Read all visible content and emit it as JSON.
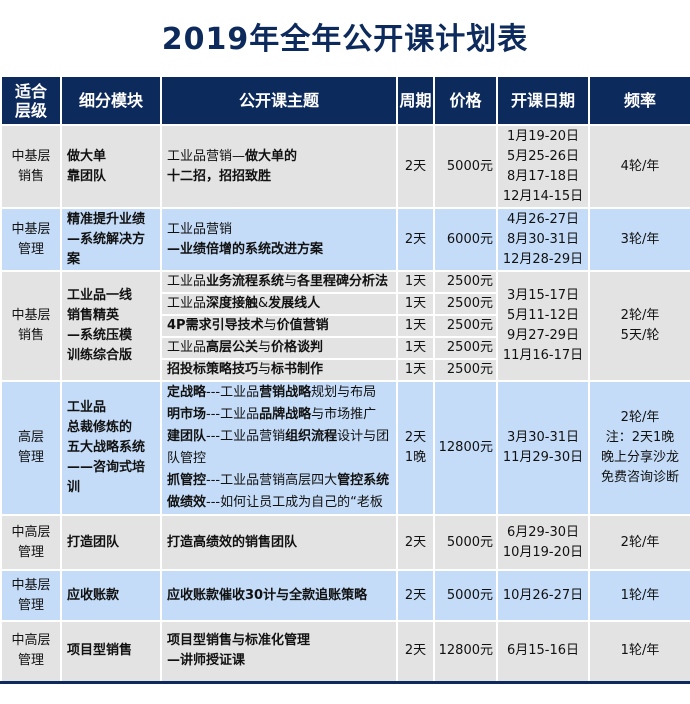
{
  "title": "2019年全年公开课计划表",
  "headers": [
    "适合\n层级",
    "细分模块",
    "公开课主题",
    "周期",
    "价格",
    "开课日期",
    "频率"
  ],
  "rows": [
    {
      "style": "g",
      "level": [
        "中基层",
        "销售"
      ],
      "module": [
        "做大单",
        "靠团队"
      ],
      "topics": [
        [
          {
            "t": "工业品营销—",
            "b": false
          },
          {
            "t": "做大单的",
            "b": true
          }
        ],
        [
          {
            "t": "十二招，招招致胜",
            "b": true
          }
        ]
      ],
      "period": "2天",
      "price": "5000元",
      "dates": [
        "1月19-20日",
        "5月25-26日",
        "8月17-18日",
        "12月14-15日"
      ],
      "freq": [
        "4轮/年"
      ]
    },
    {
      "style": "b",
      "level": [
        "中基层",
        "管理"
      ],
      "module": [
        "精准提升业绩",
        "—系统解决方案"
      ],
      "topics": [
        [
          {
            "t": "工业品营销",
            "b": false
          }
        ],
        [
          {
            "t": "—业绩倍增的系统改进方案",
            "b": true
          }
        ]
      ],
      "period": "2天",
      "price": "6000元",
      "dates": [
        "4月26-27日",
        "8月30-31日",
        "12月28-29日"
      ],
      "freq": [
        "3轮/年"
      ]
    },
    {
      "style": "g",
      "level": [
        "中基层",
        "销售"
      ],
      "module": [
        "工业品一线",
        "销售精英",
        "—系统压模",
        "训练综合版"
      ],
      "subs": [
        {
          "topic": [
            {
              "t": "工业品",
              "b": false
            },
            {
              "t": "业务流程系统",
              "b": true
            },
            {
              "t": "与",
              "b": false
            },
            {
              "t": "各里程碑分析法",
              "b": true
            }
          ],
          "period": "1天",
          "price": "2500元"
        },
        {
          "topic": [
            {
              "t": "工业品",
              "b": false
            },
            {
              "t": "深度接触",
              "b": true
            },
            {
              "t": "&",
              "b": false
            },
            {
              "t": "发展线人",
              "b": true
            }
          ],
          "period": "1天",
          "price": "2500元"
        },
        {
          "topic": [
            {
              "t": "4P需求引导技术",
              "b": true
            },
            {
              "t": "与",
              "b": false
            },
            {
              "t": "价值营销",
              "b": true
            }
          ],
          "period": "1天",
          "price": "2500元"
        },
        {
          "topic": [
            {
              "t": "工业品",
              "b": false
            },
            {
              "t": "高层公关",
              "b": true
            },
            {
              "t": "与",
              "b": false
            },
            {
              "t": "价格谈判",
              "b": true
            }
          ],
          "period": "1天",
          "price": "2500元"
        },
        {
          "topic": [
            {
              "t": "招投标策略技巧",
              "b": true
            },
            {
              "t": "与",
              "b": false
            },
            {
              "t": "标书制作",
              "b": true
            }
          ],
          "period": "1天",
          "price": "2500元"
        }
      ],
      "dates": [
        "3月15-17日",
        "5月11-12日",
        "9月27-29日",
        "11月16-17日"
      ],
      "freq": [
        "2轮/年",
        "5天/轮"
      ]
    },
    {
      "style": "b",
      "level": [
        "高层",
        "管理"
      ],
      "module": [
        "工业品",
        "总裁修炼的",
        "五大战略系统",
        "——咨询式培训"
      ],
      "topics": [
        [
          {
            "t": "定战略",
            "b": true
          },
          {
            "t": "---工业品",
            "b": false
          },
          {
            "t": "营销战略",
            "b": true
          },
          {
            "t": "规划与布局",
            "b": false
          }
        ],
        [
          {
            "t": "明市场",
            "b": true
          },
          {
            "t": "---工业品",
            "b": false
          },
          {
            "t": "品牌战略",
            "b": true
          },
          {
            "t": "与市场推广",
            "b": false
          }
        ],
        [
          {
            "t": "建团队",
            "b": true
          },
          {
            "t": "---工业品营销",
            "b": false
          },
          {
            "t": "组织流程",
            "b": true
          },
          {
            "t": "设计与团队管控",
            "b": false
          }
        ],
        [
          {
            "t": "抓管控",
            "b": true
          },
          {
            "t": "---工业品营销高层四大",
            "b": false
          },
          {
            "t": "管控系统",
            "b": true
          }
        ],
        [
          {
            "t": "做绩效",
            "b": true
          },
          {
            "t": "---如何让员工成为自己的“老板",
            "b": false
          }
        ]
      ],
      "period": "2天\n1晚",
      "price": "12800元",
      "dates": [
        "3月30-31日",
        "11月29-30日"
      ],
      "freq": [
        "2轮/年",
        "注：2天1晚",
        "晚上分享沙龙",
        "免费咨询诊断"
      ]
    },
    {
      "style": "g",
      "level": [
        "中高层",
        "管理"
      ],
      "module": [
        "打造团队"
      ],
      "topics": [
        [
          {
            "t": "打造高绩效的销售团队",
            "b": true
          }
        ]
      ],
      "period": "2天",
      "price": "5000元",
      "dates": [
        "6月29-30日",
        "10月19-20日"
      ],
      "freq": [
        "2轮/年"
      ]
    },
    {
      "style": "b",
      "level": [
        "中基层",
        "管理"
      ],
      "module": [
        "应收账款"
      ],
      "topics": [
        [
          {
            "t": "应收账款催收30计与全款追账策略",
            "b": true
          }
        ]
      ],
      "period": "2天",
      "price": "5000元",
      "dates": [
        "10月26-27日"
      ],
      "freq": [
        "1轮/年"
      ]
    },
    {
      "style": "g",
      "level": [
        "中高层",
        "管理"
      ],
      "module": [
        "项目型销售"
      ],
      "topics": [
        [
          {
            "t": "项目型销售与标准化管理",
            "b": true
          }
        ],
        [
          {
            "t": "—讲师授证课",
            "b": true
          }
        ]
      ],
      "period": "2天",
      "price": "12800元",
      "dates": [
        "6月15-16日"
      ],
      "freq": [
        "1轮/年"
      ]
    }
  ]
}
